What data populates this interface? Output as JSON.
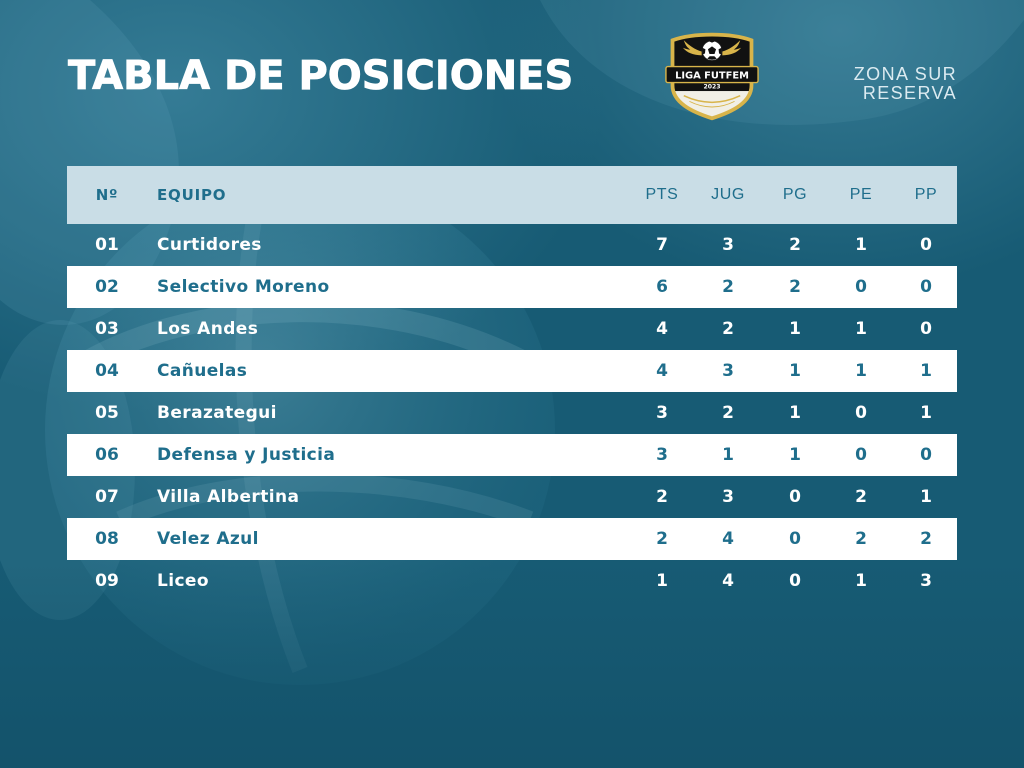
{
  "title": "TABLA DE POSICIONES",
  "logo": {
    "name": "LIGA FUTFEM",
    "year": "2023",
    "icon": "soccer-ball-icon"
  },
  "zone": {
    "line1": "ZONA SUR",
    "line2": "RESERVA"
  },
  "colors": {
    "background": "#175b74",
    "header_row": "#c9dde6",
    "accent_text": "#1f6e8c",
    "light_row": "#ffffff",
    "logo_gold": "#d8b44a"
  },
  "table": {
    "headers": {
      "pos": "Nº",
      "team": "EQUIPO",
      "pts": "PTS",
      "jug": "JUG",
      "pg": "PG",
      "pe": "PE",
      "pp": "PP"
    },
    "rows": [
      {
        "pos": "01",
        "team": "Curtidores",
        "pts": 7,
        "jug": 3,
        "pg": 2,
        "pe": 1,
        "pp": 0
      },
      {
        "pos": "02",
        "team": "Selectivo Moreno",
        "pts": 6,
        "jug": 2,
        "pg": 2,
        "pe": 0,
        "pp": 0
      },
      {
        "pos": "03",
        "team": "Los Andes",
        "pts": 4,
        "jug": 2,
        "pg": 1,
        "pe": 1,
        "pp": 0
      },
      {
        "pos": "04",
        "team": "Cañuelas",
        "pts": 4,
        "jug": 3,
        "pg": 1,
        "pe": 1,
        "pp": 1
      },
      {
        "pos": "05",
        "team": "Berazategui",
        "pts": 3,
        "jug": 2,
        "pg": 1,
        "pe": 0,
        "pp": 1
      },
      {
        "pos": "06",
        "team": "Defensa y Justicia",
        "pts": 3,
        "jug": 1,
        "pg": 1,
        "pe": 0,
        "pp": 0
      },
      {
        "pos": "07",
        "team": "Villa Albertina",
        "pts": 2,
        "jug": 3,
        "pg": 0,
        "pe": 2,
        "pp": 1
      },
      {
        "pos": "08",
        "team": "Velez Azul",
        "pts": 2,
        "jug": 4,
        "pg": 0,
        "pe": 2,
        "pp": 2
      },
      {
        "pos": "09",
        "team": "Liceo",
        "pts": 1,
        "jug": 4,
        "pg": 0,
        "pe": 1,
        "pp": 3
      }
    ]
  }
}
